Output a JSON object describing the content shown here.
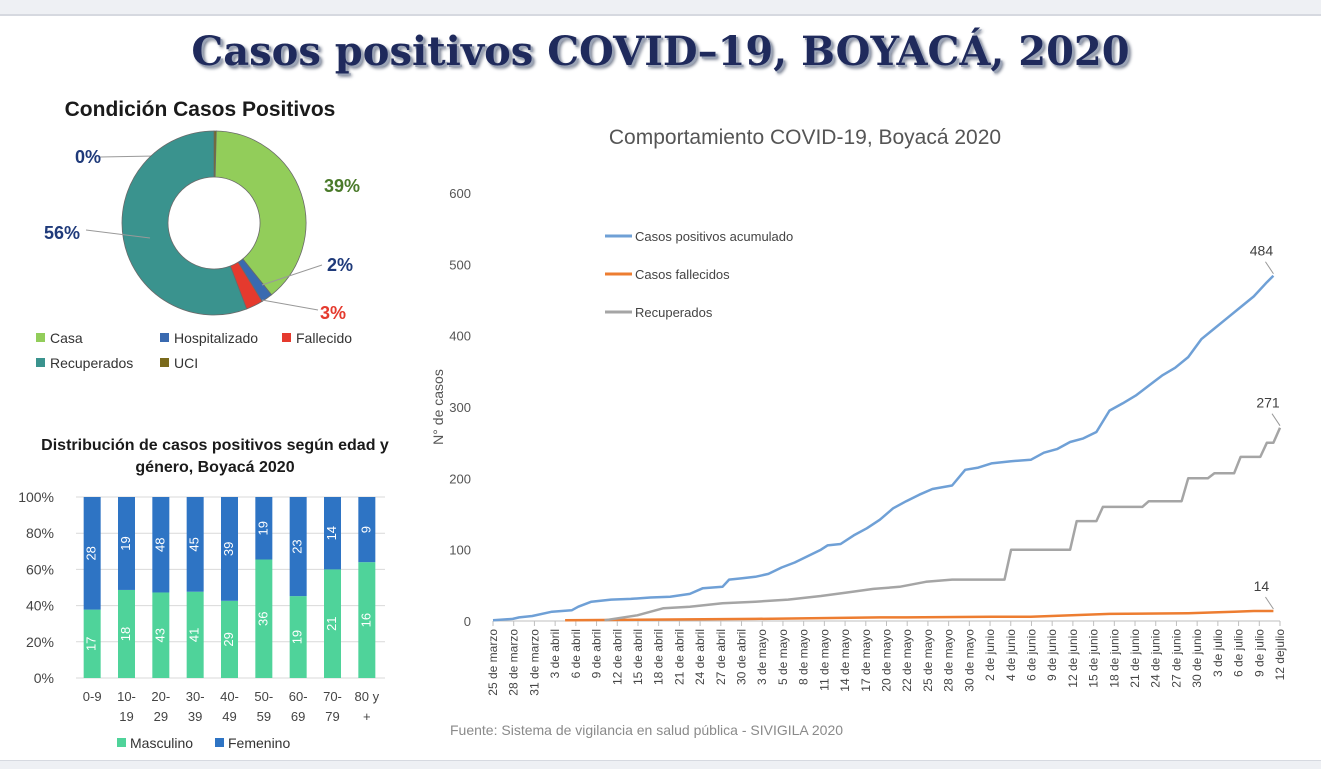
{
  "page": {
    "title": "Casos positivos COVID–19, BOYACÁ, 2020"
  },
  "chart_data": [
    {
      "type": "pie",
      "title": "Condición Casos Positivos",
      "slices": [
        {
          "name": "UCI",
          "value": 0.4,
          "label": "0%",
          "color": "#7a6a1c"
        },
        {
          "name": "Casa",
          "value": 39,
          "label": "39%",
          "color": "#92cd5a"
        },
        {
          "name": "Hospitalizado",
          "value": 2,
          "label": "2%",
          "color": "#3a6ab0"
        },
        {
          "name": "Fallecido",
          "value": 3,
          "label": "3%",
          "color": "#e53a2e"
        },
        {
          "name": "Recuperados",
          "value": 56,
          "label": "56%",
          "color": "#3a938e"
        }
      ],
      "legend": [
        "Casa",
        "Hospitalizado",
        "Fallecido",
        "Recuperados",
        "UCI"
      ]
    },
    {
      "type": "bar",
      "title": "Distribución de casos positivos según edad y género, Boyacá 2020",
      "categories": [
        "0-9",
        "10-19",
        "20-29",
        "30-39",
        "40-49",
        "50-59",
        "60-69",
        "70-79",
        "80 y +"
      ],
      "category_lines": [
        [
          "0-9"
        ],
        [
          "10-",
          "19"
        ],
        [
          "20-",
          "29"
        ],
        [
          "30-",
          "39"
        ],
        [
          "40-",
          "49"
        ],
        [
          "50-",
          "59"
        ],
        [
          "60-",
          "69"
        ],
        [
          "70-",
          "79"
        ],
        [
          "80 y",
          "+"
        ]
      ],
      "series": [
        {
          "name": "Masculino",
          "values": [
            17,
            18,
            43,
            41,
            29,
            36,
            19,
            21,
            16
          ],
          "color": "#4fd39a"
        },
        {
          "name": "Femenino",
          "values": [
            28,
            19,
            48,
            45,
            39,
            19,
            23,
            14,
            9
          ],
          "color": "#2e74c4"
        }
      ],
      "yticks": [
        "0%",
        "20%",
        "40%",
        "60%",
        "80%",
        "100%"
      ],
      "stacked": "percent",
      "legend_position": "bottom"
    },
    {
      "type": "line",
      "title": "Comportamiento COVID-19, Boyacá 2020",
      "ylabel": "N° de casos",
      "ylim": [
        0,
        600
      ],
      "yticks": [
        0,
        100,
        200,
        300,
        400,
        500,
        600
      ],
      "xticks": [
        "25 de marzo",
        "28 de marzo",
        "31 de marzo",
        "3 de abril",
        "6 de abril",
        "9 de abril",
        "12 de abril",
        "15 de abril",
        "18 de abril",
        "21 de abril",
        "24 de abril",
        "27 de abril",
        "30 de abril",
        "3 de mayo",
        "5 de mayo",
        "8 de mayo",
        "11 de mayo",
        "14 de mayo",
        "17 de mayo",
        "20 de mayo",
        "22 de mayo",
        "25 de mayo",
        "28 de mayo",
        "30 de mayo",
        "2 de junio",
        "4 de junio",
        "6 de junio",
        "9 de junio",
        "12 de junio",
        "15 de junio",
        "18 de junio",
        "21 de junio",
        "24 de junio",
        "27 de junio",
        "30 de junio",
        "3 de julio",
        "6 de julio",
        "9 de julio",
        "12 dejulio"
      ],
      "legend_position": "top-left",
      "series": [
        {
          "name": "Casos positivos acumulado",
          "color": "#6fa0d6",
          "end_label": "484",
          "values": [
            [
              0,
              1
            ],
            [
              3,
              3
            ],
            [
              4,
              5
            ],
            [
              6,
              7
            ],
            [
              9,
              13
            ],
            [
              12,
              15
            ],
            [
              13,
              20
            ],
            [
              15,
              27
            ],
            [
              18,
              30
            ],
            [
              21,
              31
            ],
            [
              24,
              33
            ],
            [
              27,
              34
            ],
            [
              30,
              38
            ],
            [
              32,
              46
            ],
            [
              35,
              48
            ],
            [
              36,
              58
            ],
            [
              38,
              60
            ],
            [
              40,
              62
            ],
            [
              42,
              66
            ],
            [
              44,
              75
            ],
            [
              46,
              82
            ],
            [
              48,
              91
            ],
            [
              50,
              100
            ],
            [
              51,
              106
            ],
            [
              53,
              108
            ],
            [
              55,
              120
            ],
            [
              57,
              130
            ],
            [
              59,
              142
            ],
            [
              61,
              158
            ],
            [
              63,
              168
            ],
            [
              65,
              177
            ],
            [
              67,
              185
            ],
            [
              70,
              190
            ],
            [
              72,
              212
            ],
            [
              74,
              215
            ],
            [
              76,
              221
            ],
            [
              79,
              224
            ],
            [
              82,
              226
            ],
            [
              84,
              236
            ],
            [
              86,
              241
            ],
            [
              88,
              251
            ],
            [
              90,
              256
            ],
            [
              92,
              265
            ],
            [
              94,
              295
            ],
            [
              96,
              305
            ],
            [
              98,
              316
            ],
            [
              100,
              330
            ],
            [
              102,
              344
            ],
            [
              104,
              355
            ],
            [
              106,
              370
            ],
            [
              108,
              395
            ],
            [
              110,
              410
            ],
            [
              112,
              425
            ],
            [
              114,
              440
            ],
            [
              116,
              455
            ],
            [
              118,
              475
            ],
            [
              119,
              484
            ]
          ]
        },
        {
          "name": "Casos fallecidos",
          "color": "#ed7d31",
          "end_label": "14",
          "values": [
            [
              11,
              1
            ],
            [
              40,
              3
            ],
            [
              59,
              5
            ],
            [
              63,
              5
            ],
            [
              76,
              6
            ],
            [
              82,
              6
            ],
            [
              94,
              10
            ],
            [
              106,
              11
            ],
            [
              110,
              12
            ],
            [
              113,
              13
            ],
            [
              116,
              14
            ],
            [
              119,
              14
            ]
          ]
        },
        {
          "name": "Recuperados",
          "color": "#a5a5a5",
          "end_label": "271",
          "values": [
            [
              17,
              1
            ],
            [
              22,
              8
            ],
            [
              26,
              18
            ],
            [
              30,
              20
            ],
            [
              35,
              25
            ],
            [
              40,
              27
            ],
            [
              45,
              30
            ],
            [
              50,
              35
            ],
            [
              54,
              40
            ],
            [
              58,
              45
            ],
            [
              62,
              48
            ],
            [
              66,
              55
            ],
            [
              70,
              58
            ],
            [
              78,
              58
            ],
            [
              79,
              100
            ],
            [
              88,
              100
            ],
            [
              89,
              140
            ],
            [
              92,
              140
            ],
            [
              93,
              160
            ],
            [
              99,
              160
            ],
            [
              100,
              168
            ],
            [
              105,
              168
            ],
            [
              106,
              200
            ],
            [
              109,
              200
            ],
            [
              110,
              207
            ],
            [
              113,
              207
            ],
            [
              114,
              230
            ],
            [
              117,
              230
            ],
            [
              118,
              250
            ],
            [
              119,
              250
            ],
            [
              120,
              271
            ]
          ]
        }
      ]
    }
  ],
  "source": "Fuente: Sistema de vigilancia en salud pública - SIVIGILA 2020"
}
